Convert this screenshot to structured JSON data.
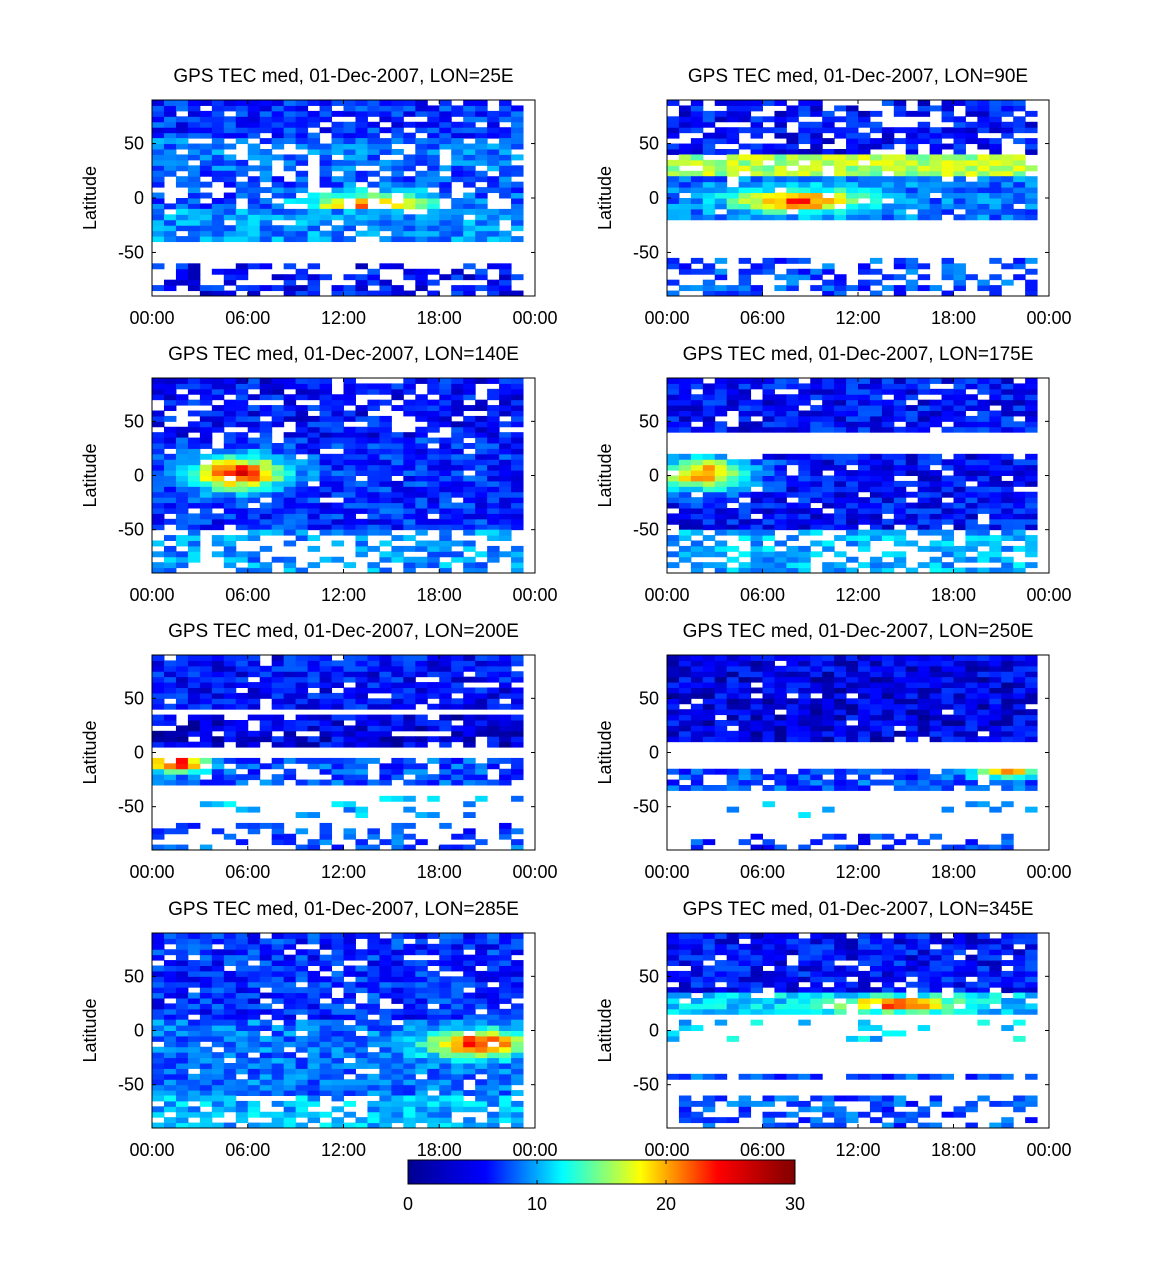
{
  "figure": {
    "colorbar": {
      "ticks": [
        "0",
        "10",
        "20",
        "30"
      ],
      "range": [
        0,
        30
      ],
      "colormap": "jet",
      "colors": [
        "#00008f",
        "#0000ff",
        "#00ffff",
        "#ffff00",
        "#ff0000",
        "#800000"
      ]
    }
  },
  "chart_data": [
    {
      "type": "heatmap",
      "title": "GPS TEC med, 01-Dec-2007, LON=25E",
      "xlabel": "",
      "ylabel": "Latitude",
      "xticks": [
        "00:00",
        "06:00",
        "12:00",
        "18:00",
        "00:00"
      ],
      "yticks": [
        "50",
        "0",
        "-50"
      ],
      "xlim_hours": [
        0,
        24
      ],
      "ylim_deg": [
        -90,
        90
      ],
      "bands": [
        {
          "lat": [
            55,
            90
          ],
          "tec": 5,
          "coverage": 0.85
        },
        {
          "lat": [
            25,
            55
          ],
          "tec": 7,
          "coverage": 0.8
        },
        {
          "lat": [
            -10,
            25
          ],
          "tec": 6,
          "coverage": 0.7,
          "peak": {
            "t": 13.5,
            "lat": -10,
            "tec": 24,
            "sigma_t": 4,
            "sigma_lat": 12
          }
        },
        {
          "lat": [
            -40,
            -10
          ],
          "tec": 8,
          "coverage": 0.9
        },
        {
          "lat": [
            -90,
            -60
          ],
          "tec": 4,
          "coverage": 0.5
        }
      ]
    },
    {
      "type": "heatmap",
      "title": "GPS TEC med, 01-Dec-2007, LON=90E",
      "xlabel": "",
      "ylabel": "Latitude",
      "xticks": [
        "00:00",
        "06:00",
        "12:00",
        "18:00",
        "00:00"
      ],
      "yticks": [
        "50",
        "0",
        "-50"
      ],
      "xlim_hours": [
        0,
        24
      ],
      "ylim_deg": [
        -90,
        90
      ],
      "bands": [
        {
          "lat": [
            40,
            90
          ],
          "tec": 4,
          "coverage": 0.7
        },
        {
          "lat": [
            20,
            40
          ],
          "tec": 16,
          "coverage": 0.85
        },
        {
          "lat": [
            -20,
            20
          ],
          "tec": 7,
          "coverage": 0.95,
          "peak": {
            "t": 8,
            "lat": -5,
            "tec": 24,
            "sigma_t": 4,
            "sigma_lat": 10
          }
        },
        {
          "lat": [
            -90,
            -55
          ],
          "tec": 6,
          "coverage": 0.5
        }
      ]
    },
    {
      "type": "heatmap",
      "title": "GPS TEC med, 01-Dec-2007, LON=140E",
      "xlabel": "",
      "ylabel": "Latitude",
      "xticks": [
        "00:00",
        "06:00",
        "12:00",
        "18:00",
        "00:00"
      ],
      "yticks": [
        "50",
        "0",
        "-50"
      ],
      "xlim_hours": [
        0,
        24
      ],
      "ylim_deg": [
        -90,
        90
      ],
      "bands": [
        {
          "lat": [
            35,
            90
          ],
          "tec": 4,
          "coverage": 0.8
        },
        {
          "lat": [
            -50,
            35
          ],
          "tec": 5,
          "coverage": 0.95,
          "peak": {
            "t": 5,
            "lat": 0,
            "tec": 26,
            "sigma_t": 3,
            "sigma_lat": 15
          }
        },
        {
          "lat": [
            -90,
            -50
          ],
          "tec": 8,
          "coverage": 0.55
        }
      ]
    },
    {
      "type": "heatmap",
      "title": "GPS TEC med, 01-Dec-2007, LON=175E",
      "xlabel": "",
      "ylabel": "Latitude",
      "xticks": [
        "00:00",
        "06:00",
        "12:00",
        "18:00",
        "00:00"
      ],
      "yticks": [
        "50",
        "0",
        "-50"
      ],
      "xlim_hours": [
        0,
        24
      ],
      "ylim_deg": [
        -90,
        90
      ],
      "bands": [
        {
          "lat": [
            40,
            90
          ],
          "tec": 4,
          "coverage": 0.9
        },
        {
          "lat": [
            -50,
            20
          ],
          "tec": 4,
          "coverage": 0.9,
          "peak": {
            "t": 2,
            "lat": 0,
            "tec": 22,
            "sigma_t": 3,
            "sigma_lat": 15
          }
        },
        {
          "lat": [
            -90,
            -50
          ],
          "tec": 9,
          "coverage": 0.6
        }
      ]
    },
    {
      "type": "heatmap",
      "title": "GPS TEC med, 01-Dec-2007, LON=200E",
      "xlabel": "",
      "ylabel": "Latitude",
      "xticks": [
        "00:00",
        "06:00",
        "12:00",
        "18:00",
        "00:00"
      ],
      "yticks": [
        "50",
        "0",
        "-50"
      ],
      "xlim_hours": [
        0,
        24
      ],
      "ylim_deg": [
        -90,
        90
      ],
      "bands": [
        {
          "lat": [
            40,
            90
          ],
          "tec": 4,
          "coverage": 0.9
        },
        {
          "lat": [
            5,
            35
          ],
          "tec": 3,
          "coverage": 0.85
        },
        {
          "lat": [
            -30,
            -5
          ],
          "tec": 6,
          "coverage": 0.8,
          "peak": {
            "t": 1,
            "lat": -12,
            "tec": 27,
            "sigma_t": 2,
            "sigma_lat": 8
          }
        },
        {
          "lat": [
            -60,
            -40
          ],
          "tec": 9,
          "coverage": 0.12
        },
        {
          "lat": [
            -90,
            -65
          ],
          "tec": 6,
          "coverage": 0.4
        }
      ]
    },
    {
      "type": "heatmap",
      "title": "GPS TEC med, 01-Dec-2007, LON=250E",
      "xlabel": "",
      "ylabel": "Latitude",
      "xticks": [
        "00:00",
        "06:00",
        "12:00",
        "18:00",
        "00:00"
      ],
      "yticks": [
        "50",
        "0",
        "-50"
      ],
      "xlim_hours": [
        0,
        24
      ],
      "ylim_deg": [
        -90,
        90
      ],
      "bands": [
        {
          "lat": [
            10,
            90
          ],
          "tec": 3,
          "coverage": 0.95
        },
        {
          "lat": [
            -35,
            -15
          ],
          "tec": 6,
          "coverage": 0.8,
          "peak": {
            "t": 21,
            "lat": -20,
            "tec": 20,
            "sigma_t": 2.5,
            "sigma_lat": 5
          }
        },
        {
          "lat": [
            -60,
            -45
          ],
          "tec": 9,
          "coverage": 0.1
        },
        {
          "lat": [
            -90,
            -75
          ],
          "tec": 5,
          "coverage": 0.3
        }
      ]
    },
    {
      "type": "heatmap",
      "title": "GPS TEC med, 01-Dec-2007, LON=285E",
      "xlabel": "",
      "ylabel": "Latitude",
      "xticks": [
        "00:00",
        "06:00",
        "12:00",
        "18:00",
        "00:00"
      ],
      "yticks": [
        "50",
        "0",
        "-50"
      ],
      "xlim_hours": [
        0,
        24
      ],
      "ylim_deg": [
        -90,
        90
      ],
      "bands": [
        {
          "lat": [
            10,
            90
          ],
          "tec": 5,
          "coverage": 0.9
        },
        {
          "lat": [
            -60,
            10
          ],
          "tec": 7,
          "coverage": 0.92,
          "peak": {
            "t": 20,
            "lat": -15,
            "tec": 26,
            "sigma_t": 3,
            "sigma_lat": 12
          }
        },
        {
          "lat": [
            -90,
            -60
          ],
          "tec": 9,
          "coverage": 0.75
        }
      ]
    },
    {
      "type": "heatmap",
      "title": "GPS TEC med, 01-Dec-2007, LON=345E",
      "xlabel": "",
      "ylabel": "Latitude",
      "xticks": [
        "00:00",
        "06:00",
        "12:00",
        "18:00",
        "00:00"
      ],
      "yticks": [
        "50",
        "0",
        "-50"
      ],
      "xlim_hours": [
        0,
        24
      ],
      "ylim_deg": [
        -90,
        90
      ],
      "bands": [
        {
          "lat": [
            35,
            90
          ],
          "tec": 4,
          "coverage": 0.9
        },
        {
          "lat": [
            15,
            35
          ],
          "tec": 10,
          "coverage": 0.9,
          "peak": {
            "t": 14,
            "lat": 22,
            "tec": 26,
            "sigma_t": 3,
            "sigma_lat": 6
          }
        },
        {
          "lat": [
            -10,
            10
          ],
          "tec": 10,
          "coverage": 0.15
        },
        {
          "lat": [
            -45,
            -40
          ],
          "tec": 6,
          "coverage": 0.9
        },
        {
          "lat": [
            -90,
            -60
          ],
          "tec": 6,
          "coverage": 0.55
        }
      ]
    }
  ]
}
